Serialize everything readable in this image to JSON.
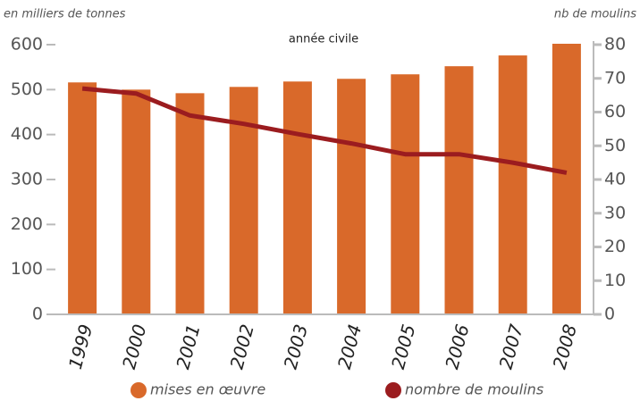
{
  "chart_data": {
    "type": "bar",
    "y_label": "en milliers de tonnes",
    "y2_label": "nb de moulins",
    "annotation": "année civile",
    "categories": [
      "1999",
      "2000",
      "2001",
      "2002",
      "2003",
      "2004",
      "2005",
      "2006",
      "2007",
      "2008"
    ],
    "series": [
      {
        "name": "mises en œuvre",
        "type": "bar",
        "color": "#d9692a",
        "values": [
          516,
          500,
          492,
          506,
          518,
          524,
          534,
          552,
          576,
          602
        ]
      },
      {
        "name": "nombre de moulins",
        "type": "line",
        "axis": "y2",
        "color": "#9b1c1f",
        "values": [
          67,
          65.5,
          59,
          56.5,
          53.5,
          50.7,
          47.5,
          47.5,
          45,
          42
        ]
      }
    ],
    "ylim": [
      0,
      600
    ],
    "yticks": [
      0,
      100,
      200,
      300,
      400,
      500,
      600
    ],
    "y2lim": [
      0,
      80
    ],
    "y2ticks": [
      0,
      10,
      20,
      30,
      40,
      50,
      60,
      70,
      80
    ],
    "legend": "bottom"
  }
}
